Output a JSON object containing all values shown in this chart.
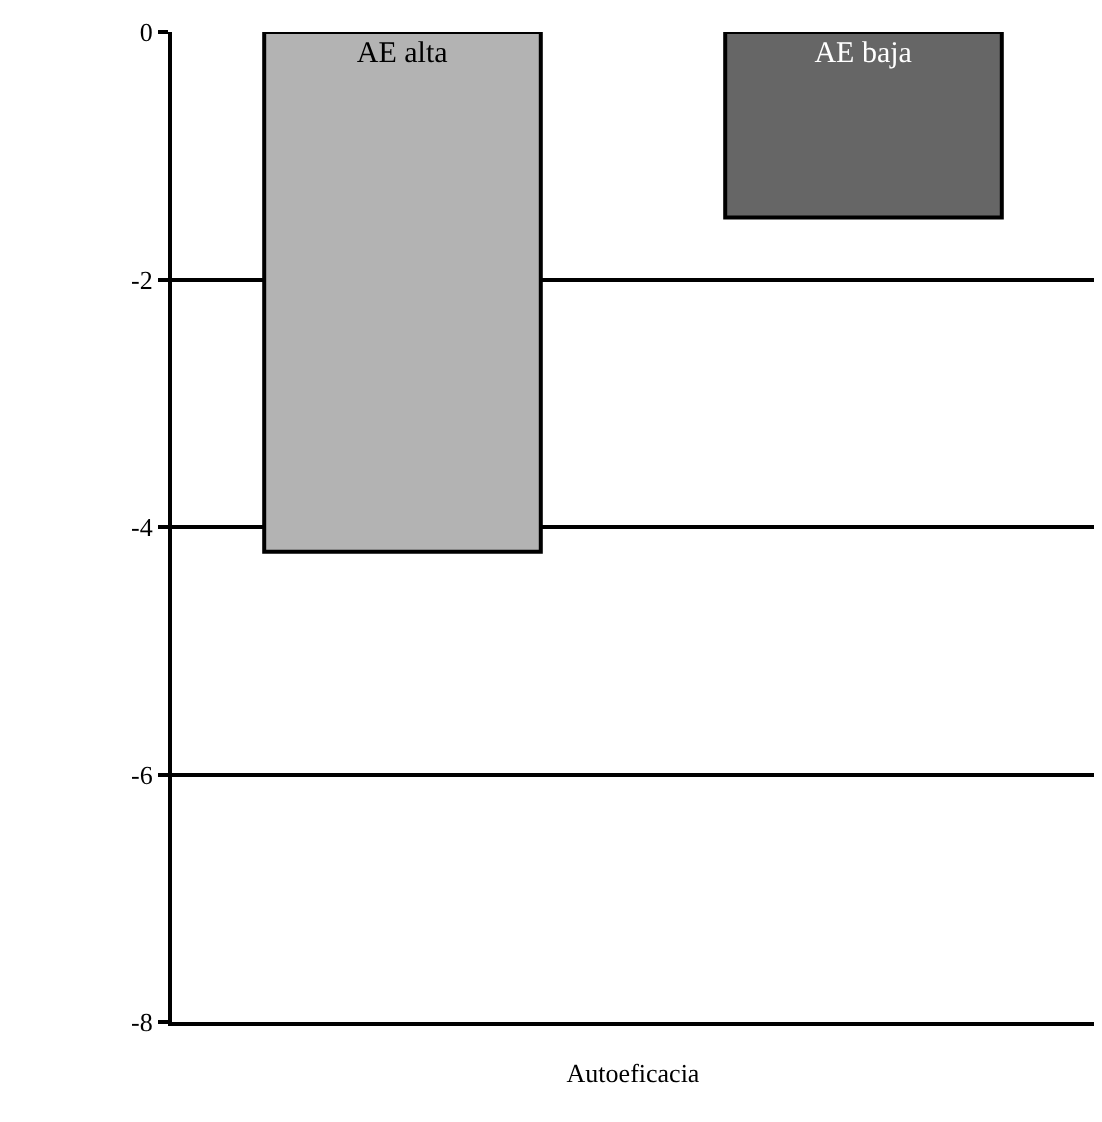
{
  "chart_data": {
    "type": "bar",
    "xlabel": "Autoeficacia",
    "categories": [
      "AE alta",
      "AE baja"
    ],
    "colors": [
      "#b3b3b3",
      "#666666"
    ],
    "values": [
      -4.2,
      -1.5
    ],
    "ylim": [
      -8,
      0
    ],
    "yticks": [
      0,
      -2,
      -4,
      -6,
      -8
    ],
    "grid": "y",
    "legend": false,
    "tick_labels": "y"
  }
}
